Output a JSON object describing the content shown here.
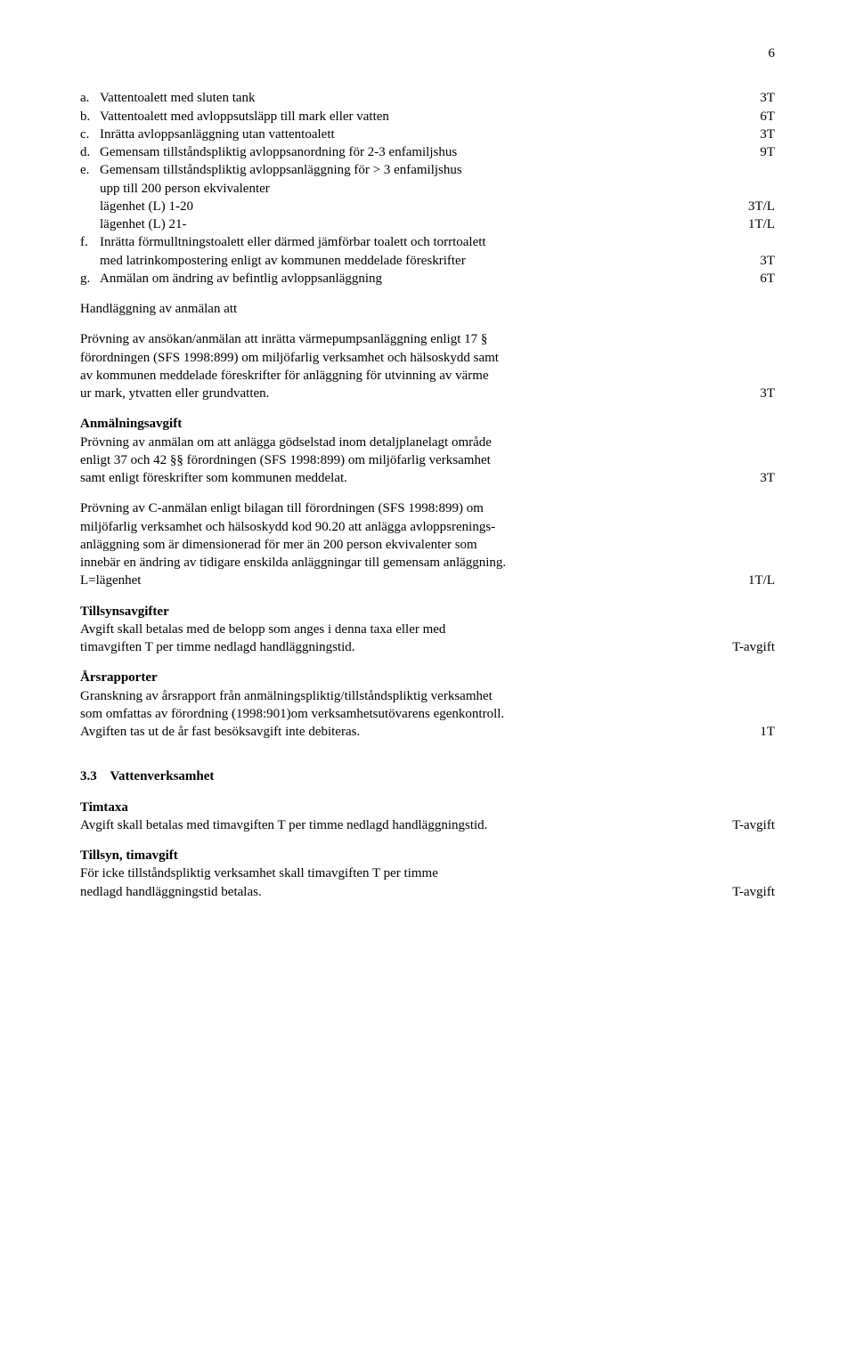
{
  "page_number": "6",
  "items": {
    "a": {
      "text": "Vattentoalett med sluten tank",
      "value": "3T"
    },
    "b": {
      "text": "Vattentoalett med avloppsutsläpp till mark eller vatten",
      "value": "6T"
    },
    "c": {
      "text": "Inrätta avloppsanläggning utan vattentoalett",
      "value": "3T"
    },
    "d": {
      "text": "Gemensam tillståndspliktig avloppsanordning för 2-3 enfamiljshus",
      "value": "9T"
    },
    "e": {
      "line1": "Gemensam tillståndspliktig avloppsanläggning för > 3 enfamiljshus",
      "line2": "upp till 200 person ekvivalenter",
      "sub1_label": "lägenhet (L) 1-20",
      "sub1_value": "3T/L",
      "sub2_label": "lägenhet (L) 21-",
      "sub2_value": "1T/L"
    },
    "f": {
      "line1": "Inrätta förmulltningstoalett eller därmed jämförbar toalett och torrtoalett",
      "line2": "med latrinkompostering enligt av kommunen meddelade föreskrifter",
      "value": "3T"
    },
    "g": {
      "text": "Anmälan om ändring av befintlig avloppsanläggning",
      "value": "6T"
    }
  },
  "handlaggning_title": "Handläggning av anmälan att",
  "provning1": {
    "l1": "Prövning av ansökan/anmälan att inrätta värmepumpsanläggning enligt 17 §",
    "l2": "förordningen (SFS 1998:899) om miljöfarlig verksamhet och hälsoskydd samt",
    "l3": "av kommunen meddelade föreskrifter för anläggning för utvinning av värme",
    "l4": "ur mark, ytvatten eller grundvatten.",
    "value": "3T"
  },
  "anmalningsavgift_title": "Anmälningsavgift",
  "provning2": {
    "l1": "Prövning av anmälan om att anlägga gödselstad inom detaljplanelagt område",
    "l2": "enligt 37 och 42 §§ förordningen (SFS 1998:899) om miljöfarlig verksamhet",
    "l3": "samt enligt föreskrifter som kommunen meddelat.",
    "value": "3T"
  },
  "provning3": {
    "l1": "Prövning av C-anmälan enligt bilagan till förordningen (SFS 1998:899) om",
    "l2": " miljöfarlig verksamhet och hälsoskydd kod 90.20 att anlägga avloppsrenings-",
    "l3": "anläggning som är dimensionerad för mer än 200 person ekvivalenter som",
    "l4": " innebär en ändring av tidigare enskilda anläggningar till gemensam anläggning.",
    "l5": "L=lägenhet",
    "value": "1T/L"
  },
  "tillsynsavgifter_title": "Tillsynsavgifter",
  "tillsynsavgifter": {
    "l1": "Avgift skall betalas med de belopp som anges i denna taxa eller med",
    "l2": "timavgiften T per timme nedlagd handläggningstid.",
    "value": "T-avgift"
  },
  "arsrapporter_title": "Årsrapporter",
  "arsrapporter": {
    "l1": "Granskning av årsrapport från anmälningspliktig/tillståndspliktig verksamhet",
    "l2": "som omfattas av förordning (1998:901)om verksamhetsutövarens egenkontroll.",
    "l3": " Avgiften tas ut de år fast besöksavgift inte debiteras.",
    "value": "1T"
  },
  "section33_num": "3.3",
  "section33_title": "Vattenverksamhet",
  "timtaxa_title": "Timtaxa",
  "timtaxa": {
    "text": "Avgift skall betalas med timavgiften T per timme nedlagd handläggningstid.",
    "value": "T-avgift"
  },
  "tillsyn_title": "Tillsyn, timavgift",
  "tillsyn": {
    "l1": "För icke tillståndspliktig verksamhet skall timavgiften T per timme",
    "l2": "nedlagd handläggningstid betalas.",
    "value": "T-avgift"
  }
}
